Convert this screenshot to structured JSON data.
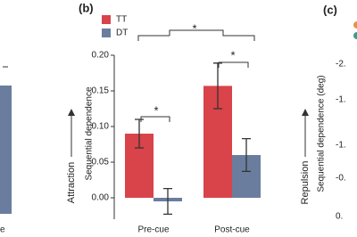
{
  "chart_data": {
    "type": "bar",
    "panel_label": "(b)",
    "y_label": "Sequential dependence",
    "direction_label": "Attraction",
    "categories": [
      "Pre-cue",
      "Post-cue"
    ],
    "series": [
      {
        "name": "TT",
        "color": "#d9434a",
        "values": [
          0.09,
          0.157
        ],
        "errors": [
          0.02,
          0.032
        ]
      },
      {
        "name": "DT",
        "color": "#6a7d9f",
        "values": [
          -0.005,
          0.06
        ],
        "errors": [
          0.018,
          0.023
        ]
      }
    ],
    "ylim": [
      -0.03,
      0.2
    ],
    "yticks": [
      {
        "value": 0,
        "label": "0.00"
      },
      0.05,
      {
        "value": 0.1,
        "label": "0.10"
      },
      0.15,
      {
        "value": 0.2,
        "label": "0.20"
      }
    ],
    "annotations": [
      "*",
      "*",
      "*"
    ]
  },
  "left_fragment": {
    "texts": [
      "e"
    ]
  },
  "right_fragment": {
    "panel_label": "(c)",
    "tick_texts": [
      "-2.",
      "-1.",
      "-1.",
      "-0.",
      "0."
    ],
    "direction_label": "Repulsion",
    "y_label": "Sequential dependence (deg)"
  }
}
